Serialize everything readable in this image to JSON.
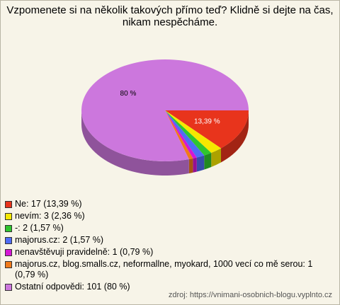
{
  "chart_data": {
    "type": "pie",
    "title": "Vzpomenete si na několik takových přímo teď? Klidně si dejte na čas, nikam nespěcháme.",
    "categories": [
      "Ne: 17 (13,39 %)",
      "nevím: 3 (2,36 %)",
      "-: 2 (1,57 %)",
      "majorus.cz: 2 (1,57 %)",
      "nenavštěvuji pravidelně: 1 (0,79 %)",
      "majorus.cz, blog.smalls.cz, neformallne, myokard, 1000 vecí co mě serou: 1 (0,79 %)",
      "Ostatní odpovědi: 101 (80 %)"
    ],
    "values": [
      13.39,
      2.36,
      1.57,
      1.57,
      0.79,
      0.79,
      80
    ],
    "value_labels": [
      "13,39 %",
      null,
      null,
      null,
      null,
      null,
      "80 %"
    ],
    "colors": [
      "#e8341c",
      "#f5e800",
      "#2fc52f",
      "#4f6cf5",
      "#d417d4",
      "#f07a1a",
      "#cc77dd"
    ],
    "source": "zdroj: https://vnimani-osobnich-blogu.vyplnto.cz"
  }
}
